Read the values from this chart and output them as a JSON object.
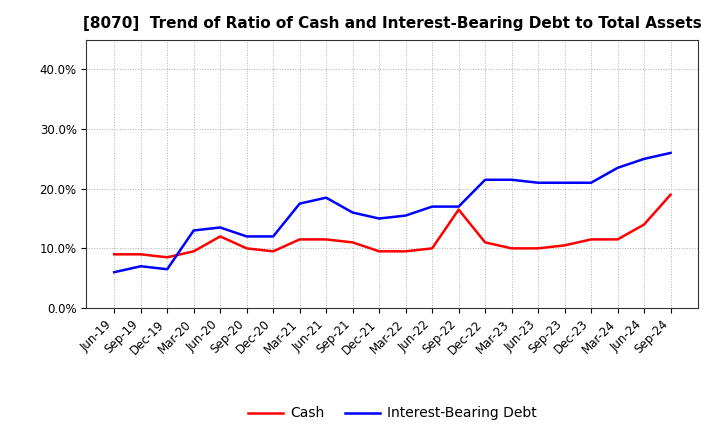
{
  "title": "[8070]  Trend of Ratio of Cash and Interest-Bearing Debt to Total Assets",
  "x_labels": [
    "Jun-19",
    "Sep-19",
    "Dec-19",
    "Mar-20",
    "Jun-20",
    "Sep-20",
    "Dec-20",
    "Mar-21",
    "Jun-21",
    "Sep-21",
    "Dec-21",
    "Mar-22",
    "Jun-22",
    "Sep-22",
    "Dec-22",
    "Mar-23",
    "Jun-23",
    "Sep-23",
    "Dec-23",
    "Mar-24",
    "Jun-24",
    "Sep-24"
  ],
  "cash": [
    9.0,
    9.0,
    8.5,
    9.5,
    12.0,
    10.0,
    9.5,
    11.5,
    11.5,
    11.0,
    9.5,
    9.5,
    10.0,
    16.5,
    11.0,
    10.0,
    10.0,
    10.5,
    11.5,
    11.5,
    14.0,
    19.0
  ],
  "interest_bearing_debt": [
    6.0,
    7.0,
    6.5,
    13.0,
    13.5,
    12.0,
    12.0,
    17.5,
    18.5,
    16.0,
    15.0,
    15.5,
    17.0,
    17.0,
    21.5,
    21.5,
    21.0,
    21.0,
    21.0,
    23.5,
    25.0,
    26.0
  ],
  "cash_color": "#ff0000",
  "debt_color": "#0000ff",
  "ylim": [
    0,
    45
  ],
  "yticks": [
    0,
    10,
    20,
    30,
    40
  ],
  "ytick_labels": [
    "0.0%",
    "10.0%",
    "20.0%",
    "30.0%",
    "40.0%"
  ],
  "bg_color": "#ffffff",
  "plot_bg_color": "#ffffff",
  "grid_color": "#b0b0b0",
  "legend_cash": "Cash",
  "legend_debt": "Interest-Bearing Debt",
  "line_width": 1.8,
  "title_fontsize": 11,
  "tick_fontsize": 8.5,
  "legend_fontsize": 10
}
